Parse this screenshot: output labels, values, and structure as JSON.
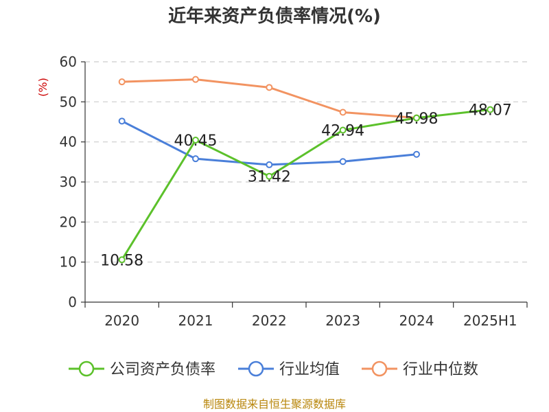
{
  "chart_data": {
    "type": "line",
    "title": "近年来资产负债率情况(%)",
    "ylabel": "(%)",
    "ylim": [
      0,
      60
    ],
    "yticks": [
      0,
      10,
      20,
      30,
      40,
      50,
      60
    ],
    "categories": [
      "2020",
      "2021",
      "2022",
      "2023",
      "2024",
      "2025H1"
    ],
    "grid": true,
    "legend_position": "bottom",
    "series": [
      {
        "name": "公司资产负债率",
        "color": "#5cc12b",
        "values": [
          10.58,
          40.45,
          31.42,
          42.94,
          45.98,
          48.07
        ],
        "labels": [
          "10.58",
          "40.45",
          "31.42",
          "42.94",
          "45.98",
          "48.07"
        ]
      },
      {
        "name": "行业均值",
        "color": "#4a7fd9",
        "values": [
          45.2,
          35.8,
          34.3,
          35.1,
          36.9,
          null
        ]
      },
      {
        "name": "行业中位数",
        "color": "#f29361",
        "values": [
          55.0,
          55.6,
          53.6,
          47.4,
          46.0,
          null
        ]
      }
    ],
    "source": "制图数据来自恒生聚源数据库",
    "colors": {
      "title": "#333333",
      "ylabel": "#cc0000",
      "source": "#b8860b",
      "grid": "#cccccc",
      "axis": "#333333"
    }
  }
}
